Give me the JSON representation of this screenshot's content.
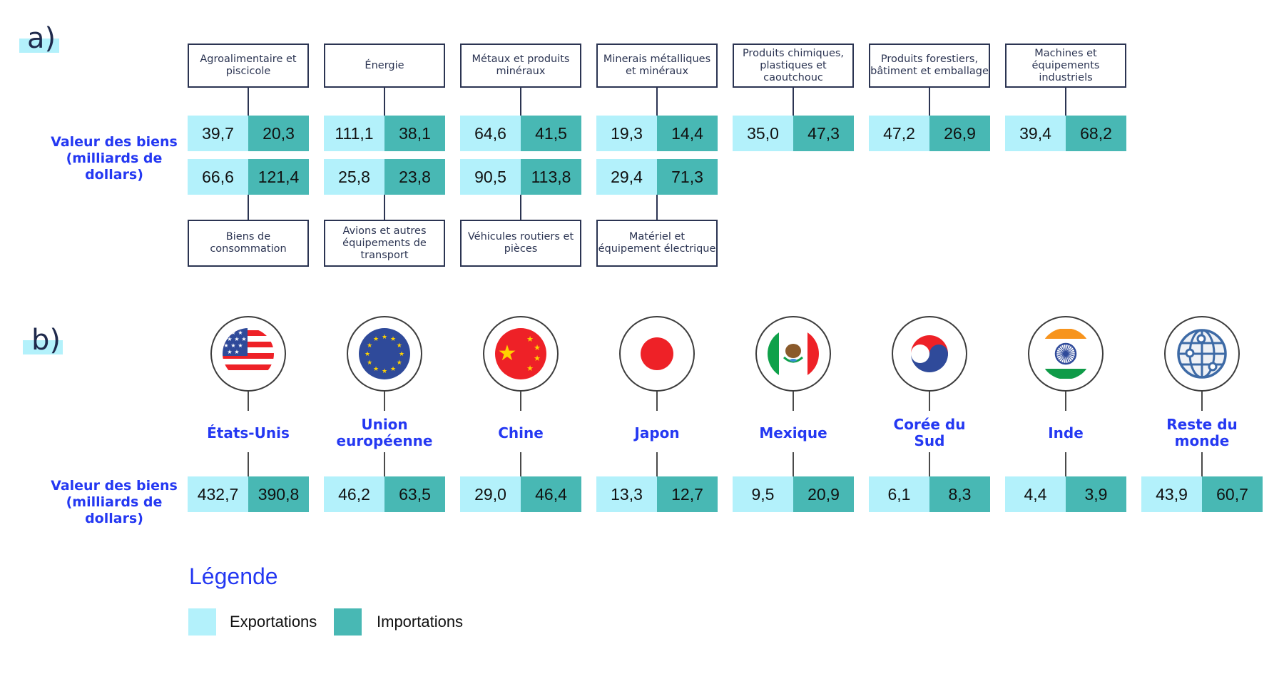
{
  "section_a": {
    "tag": "a)",
    "side_label": "Valeur des biens (milliards de dollars)",
    "top_categories": [
      {
        "label": "Agroalimentaire et piscicole",
        "export": "39,7",
        "import": "20,3"
      },
      {
        "label": "Énergie",
        "export": "111,1",
        "import": "38,1"
      },
      {
        "label": "Métaux et produits minéraux",
        "export": "64,6",
        "import": "41,5"
      },
      {
        "label": "Minerais métalliques et minéraux",
        "export": "19,3",
        "import": "14,4"
      },
      {
        "label": "Produits chimiques, plastiques et caoutchouc",
        "export": "35,0",
        "import": "47,3"
      },
      {
        "label": "Produits forestiers, bâtiment et emballage",
        "export": "47,2",
        "import": "26,9"
      },
      {
        "label": "Machines et équipements industriels",
        "export": "39,4",
        "import": "68,2"
      }
    ],
    "bottom_categories": [
      {
        "label": "Biens de consommation",
        "export": "66,6",
        "import": "121,4"
      },
      {
        "label": "Avions et autres équipements de transport",
        "export": "25,8",
        "import": "23,8"
      },
      {
        "label": "Véhicules routiers et pièces",
        "export": "90,5",
        "import": "113,8"
      },
      {
        "label": "Matériel et équipement électrique",
        "export": "29,4",
        "import": "71,3"
      }
    ]
  },
  "section_b": {
    "tag": "b)",
    "side_label": "Valeur des biens (milliards de dollars)",
    "partners": [
      {
        "name": "États-Unis",
        "icon": "us-flag-icon",
        "export": "432,7",
        "import": "390,8"
      },
      {
        "name": "Union européenne",
        "icon": "eu-flag-icon",
        "export": "46,2",
        "import": "63,5"
      },
      {
        "name": "Chine",
        "icon": "china-flag-icon",
        "export": "29,0",
        "import": "46,4"
      },
      {
        "name": "Japon",
        "icon": "japan-flag-icon",
        "export": "13,3",
        "import": "12,7"
      },
      {
        "name": "Mexique",
        "icon": "mexico-flag-icon",
        "export": "9,5",
        "import": "20,9"
      },
      {
        "name": "Corée du Sud",
        "icon": "south-korea-flag-icon",
        "export": "6,1",
        "import": "8,3"
      },
      {
        "name": "Inde",
        "icon": "india-flag-icon",
        "export": "4,4",
        "import": "3,9"
      },
      {
        "name": "Reste du monde",
        "icon": "globe-icon",
        "export": "43,9",
        "import": "60,7"
      }
    ]
  },
  "legend": {
    "title": "Légende",
    "items": [
      {
        "label": "Exportations",
        "color": "#b3f1fb"
      },
      {
        "label": "Importations",
        "color": "#48b8b4"
      }
    ]
  },
  "colors": {
    "export": "#b3f1fb",
    "import": "#48b8b4",
    "accent_text": "#2438f2",
    "box_border": "#2b3452"
  },
  "chart_data": {
    "type": "table",
    "title": "",
    "units": "milliards de dollars",
    "series_names": [
      "Exportations",
      "Importations"
    ],
    "by_product": {
      "categories": [
        "Agroalimentaire et piscicole",
        "Énergie",
        "Métaux et produits minéraux",
        "Minerais métalliques et minéraux",
        "Produits chimiques, plastiques et caoutchouc",
        "Produits forestiers, bâtiment et emballage",
        "Machines et équipements industriels",
        "Biens de consommation",
        "Avions et autres équipements de transport",
        "Véhicules routiers et pièces",
        "Matériel et équipement électrique"
      ],
      "series": [
        {
          "name": "Exportations",
          "values": [
            39.7,
            111.1,
            64.6,
            19.3,
            35.0,
            47.2,
            39.4,
            66.6,
            25.8,
            90.5,
            29.4
          ]
        },
        {
          "name": "Importations",
          "values": [
            20.3,
            38.1,
            41.5,
            14.4,
            47.3,
            26.9,
            68.2,
            121.4,
            23.8,
            113.8,
            71.3
          ]
        }
      ]
    },
    "by_partner": {
      "categories": [
        "États-Unis",
        "Union européenne",
        "Chine",
        "Japon",
        "Mexique",
        "Corée du Sud",
        "Inde",
        "Reste du monde"
      ],
      "series": [
        {
          "name": "Exportations",
          "values": [
            432.7,
            46.2,
            29.0,
            13.3,
            9.5,
            6.1,
            4.4,
            43.9
          ]
        },
        {
          "name": "Importations",
          "values": [
            390.8,
            63.5,
            46.4,
            12.7,
            20.9,
            8.3,
            3.9,
            60.7
          ]
        }
      ]
    }
  }
}
